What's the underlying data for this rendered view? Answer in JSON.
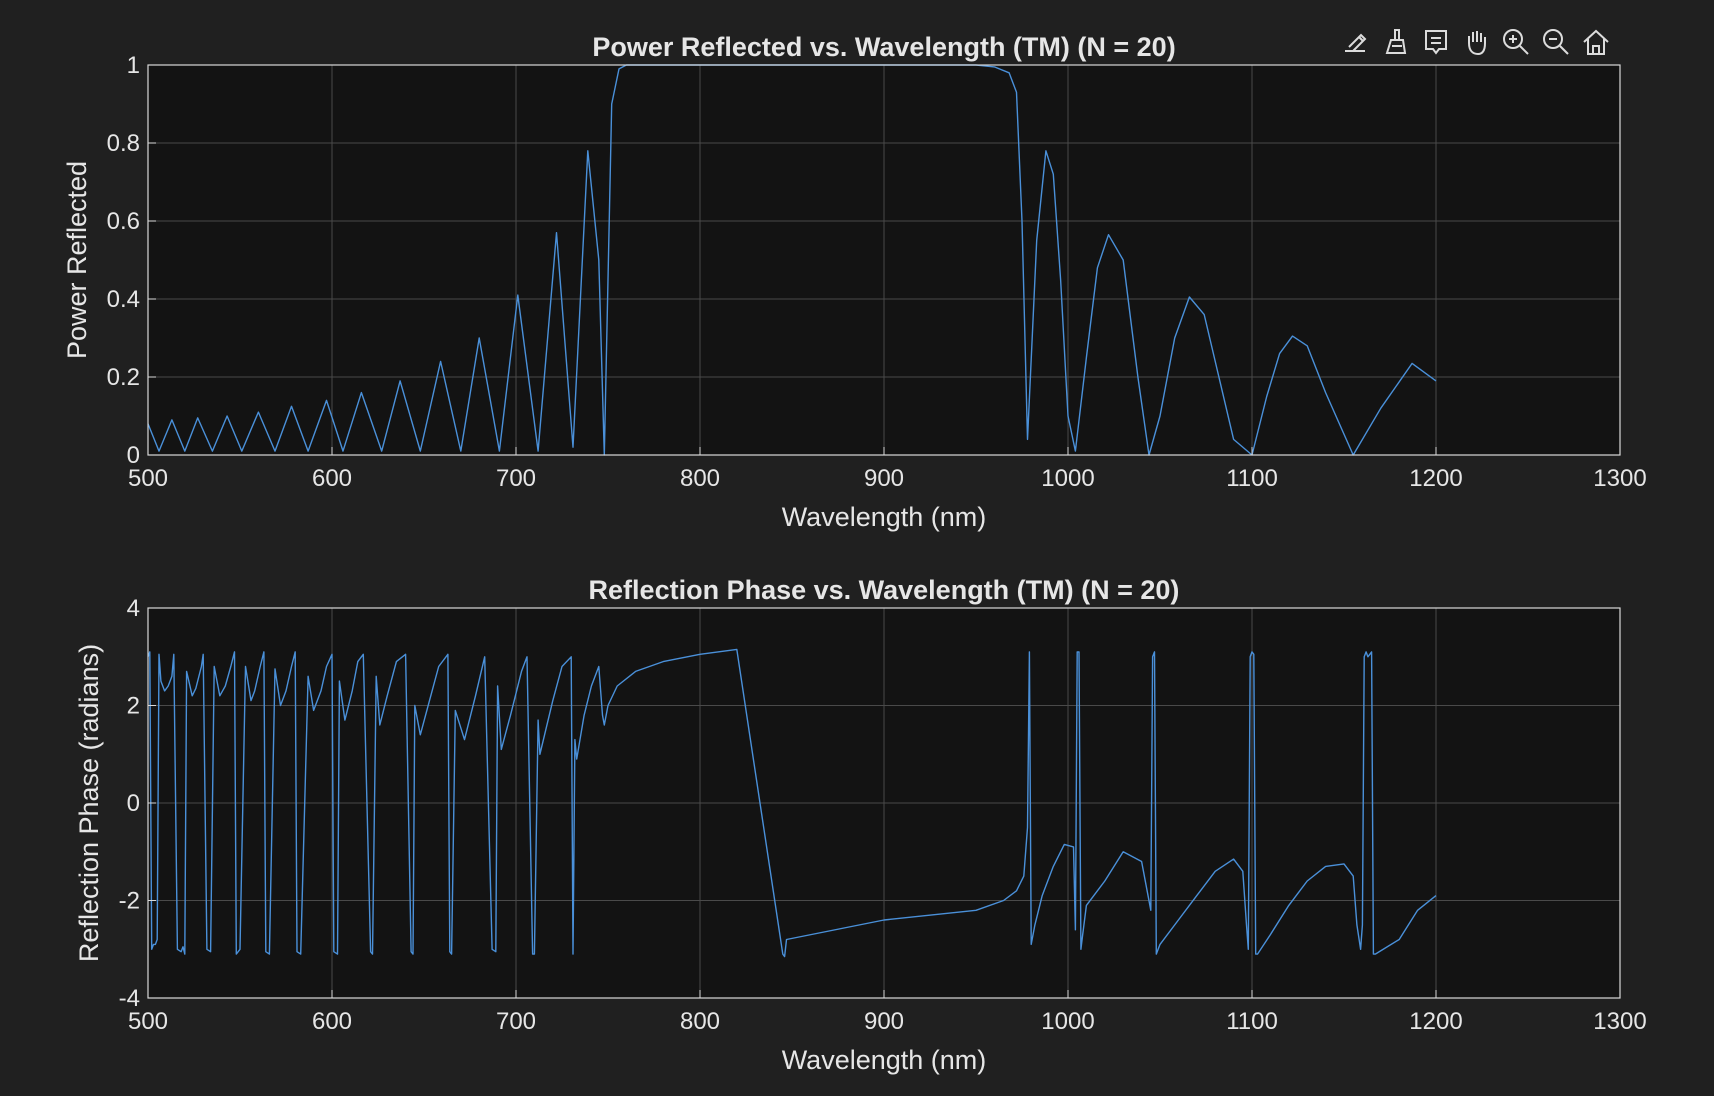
{
  "toolbar": {
    "icons": [
      "export-icon",
      "brush-icon",
      "data-tips-icon",
      "pan-icon",
      "zoom-in-icon",
      "zoom-out-icon",
      "home-icon"
    ]
  },
  "colors": {
    "figure_bg": "#202020",
    "axes_bg": "#131313",
    "grid": "#4a4a4a",
    "axis": "#d9d9d9",
    "text": "#e6e6e6",
    "series": "#4a90d9"
  },
  "chart_data": [
    {
      "type": "line",
      "title": "Power Reflected vs. Wavelength (TM) (N = 20)",
      "xlabel": "Wavelength (nm)",
      "ylabel": "Power Reflected",
      "xlim": [
        500,
        1300
      ],
      "ylim": [
        0,
        1
      ],
      "xticks": [
        500,
        600,
        700,
        800,
        900,
        1000,
        1100,
        1200,
        1300
      ],
      "xtick_labels": [
        "500",
        "600",
        "700",
        "800",
        "900",
        "1000",
        "1100",
        "1200",
        "1300"
      ],
      "yticks": [
        0,
        0.2,
        0.4,
        0.6,
        0.8,
        1
      ],
      "ytick_labels": [
        "0",
        "0.2",
        "0.4",
        "0.6",
        "0.8",
        "1"
      ],
      "grid": true,
      "series": [
        {
          "x": [
            500,
            506,
            513,
            520,
            527,
            535,
            543,
            551,
            560,
            569,
            578,
            587,
            597,
            606,
            616,
            627,
            637,
            648,
            659,
            670,
            680,
            691,
            701,
            712,
            722,
            731,
            739,
            745,
            748,
            752,
            756,
            760,
            800,
            850,
            900,
            950,
            960,
            968,
            972,
            975,
            978,
            983,
            988,
            992,
            996,
            1000,
            1004,
            1010,
            1016,
            1022,
            1030,
            1038,
            1044,
            1050,
            1058,
            1066,
            1074,
            1082,
            1090,
            1100,
            1108,
            1115,
            1122,
            1130,
            1140,
            1155,
            1170,
            1187,
            1200
          ],
          "y": [
            0.08,
            0.01,
            0.09,
            0.01,
            0.095,
            0.01,
            0.1,
            0.01,
            0.11,
            0.01,
            0.125,
            0.01,
            0.14,
            0.01,
            0.16,
            0.01,
            0.19,
            0.01,
            0.24,
            0.01,
            0.3,
            0.01,
            0.41,
            0.01,
            0.57,
            0.02,
            0.78,
            0.5,
            0.0,
            0.9,
            0.99,
            1.0,
            1.0,
            1.0,
            1.0,
            1.0,
            0.995,
            0.98,
            0.93,
            0.6,
            0.04,
            0.55,
            0.78,
            0.72,
            0.45,
            0.1,
            0.01,
            0.25,
            0.48,
            0.565,
            0.5,
            0.2,
            0.0,
            0.1,
            0.3,
            0.405,
            0.36,
            0.2,
            0.04,
            0.0,
            0.15,
            0.26,
            0.305,
            0.28,
            0.16,
            0.0,
            0.12,
            0.235,
            0.19
          ]
        }
      ]
    },
    {
      "type": "line",
      "title": "Reflection Phase vs. Wavelength (TM) (N = 20)",
      "xlabel": "Wavelength (nm)",
      "ylabel": "Reflection Phase (radians)",
      "xlim": [
        500,
        1300
      ],
      "ylim": [
        -4,
        4
      ],
      "xticks": [
        500,
        600,
        700,
        800,
        900,
        1000,
        1100,
        1200,
        1300
      ],
      "xtick_labels": [
        "500",
        "600",
        "700",
        "800",
        "900",
        "1000",
        "1100",
        "1200",
        "1300"
      ],
      "yticks": [
        -4,
        -2,
        0,
        2,
        4
      ],
      "ytick_labels": [
        "-4",
        "-2",
        "0",
        "2",
        "4"
      ],
      "grid": true,
      "series": [
        {
          "x": [
            500,
            501,
            502,
            503,
            504,
            505,
            506,
            507,
            509,
            511,
            513,
            514,
            516,
            518,
            519,
            520,
            521,
            524,
            526,
            529,
            530,
            532,
            534,
            536,
            539,
            542,
            545,
            547,
            548,
            550,
            553,
            556,
            558,
            561,
            563,
            564,
            566,
            569,
            572,
            575,
            578,
            580,
            581,
            583,
            587,
            590,
            594,
            597,
            600,
            601,
            603,
            604,
            607,
            611,
            614,
            617,
            621,
            622,
            624,
            626,
            630,
            635,
            640,
            643,
            644,
            645,
            648,
            653,
            658,
            663,
            664,
            665,
            667,
            672,
            678,
            683,
            687,
            689,
            690,
            692,
            697,
            703,
            706,
            709,
            710,
            712,
            713,
            720,
            725,
            730,
            731,
            732,
            733,
            737,
            741,
            745,
            747,
            748,
            750,
            755,
            765,
            780,
            800,
            820,
            845,
            846,
            847,
            900,
            950,
            965,
            972,
            976,
            978,
            979,
            980,
            982,
            986,
            992,
            998,
            1003,
            1004,
            1005,
            1006,
            1007,
            1008,
            1010,
            1020,
            1030,
            1040,
            1045,
            1046,
            1047,
            1048,
            1050,
            1060,
            1070,
            1080,
            1090,
            1095,
            1097,
            1098,
            1099,
            1100,
            1101,
            1102,
            1103,
            1110,
            1120,
            1130,
            1140,
            1150,
            1155,
            1157,
            1159,
            1160,
            1161,
            1162,
            1163,
            1164,
            1165,
            1166,
            1167,
            1180,
            1190,
            1200
          ],
          "y": [
            3.0,
            3.1,
            -3.0,
            -2.9,
            -2.9,
            -2.8,
            3.05,
            2.5,
            2.3,
            2.4,
            2.6,
            3.05,
            -3.0,
            -3.05,
            -2.95,
            -3.1,
            2.7,
            2.2,
            2.35,
            2.8,
            3.05,
            -3.0,
            -3.05,
            2.8,
            2.2,
            2.4,
            2.8,
            3.1,
            -3.1,
            -3.0,
            2.8,
            2.1,
            2.3,
            2.8,
            3.1,
            -3.05,
            -3.1,
            2.75,
            2.0,
            2.3,
            2.8,
            3.1,
            -3.05,
            -3.1,
            2.6,
            1.9,
            2.3,
            2.8,
            3.05,
            -3.05,
            -3.1,
            2.5,
            1.7,
            2.3,
            2.9,
            3.05,
            -3.05,
            -3.1,
            2.6,
            1.6,
            2.2,
            2.9,
            3.05,
            -3.05,
            -3.1,
            2.0,
            1.4,
            2.1,
            2.8,
            3.05,
            -3.05,
            -3.1,
            1.9,
            1.3,
            2.2,
            3.0,
            -3.0,
            -3.05,
            2.4,
            1.1,
            1.8,
            2.7,
            3.0,
            -3.1,
            -3.1,
            1.7,
            1.0,
            2.1,
            2.8,
            3.0,
            -3.1,
            1.3,
            0.9,
            1.8,
            2.4,
            2.8,
            1.8,
            1.6,
            2.0,
            2.4,
            2.7,
            2.9,
            3.05,
            3.15,
            -3.1,
            -3.15,
            -2.8,
            -2.4,
            -2.2,
            -2.0,
            -1.8,
            -1.5,
            -0.5,
            3.1,
            -2.9,
            -2.5,
            -1.9,
            -1.3,
            -0.85,
            -0.9,
            -2.6,
            3.1,
            3.1,
            -3.0,
            -2.7,
            -2.1,
            -1.6,
            -1.0,
            -1.2,
            -2.2,
            3.0,
            3.1,
            -3.1,
            -2.9,
            -2.4,
            -1.9,
            -1.4,
            -1.15,
            -1.4,
            -2.5,
            -3.0,
            3.0,
            3.1,
            3.05,
            -3.1,
            -3.1,
            -2.7,
            -2.1,
            -1.6,
            -1.3,
            -1.25,
            -1.5,
            -2.5,
            -3.0,
            -2.5,
            3.0,
            3.1,
            3.0,
            3.05,
            3.1,
            -3.1,
            -3.1,
            -2.8,
            -2.2,
            -1.9
          ]
        }
      ]
    }
  ]
}
